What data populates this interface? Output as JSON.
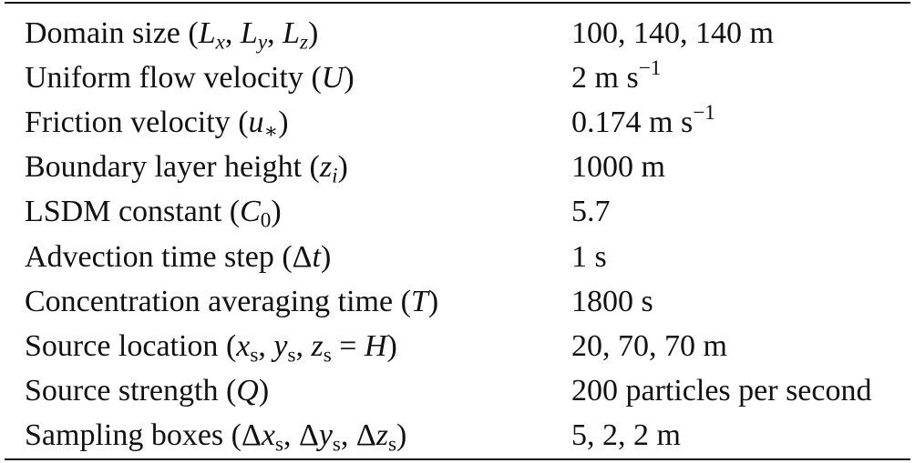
{
  "table": {
    "rows": [
      {
        "name": "Domain size",
        "symbol_html": "(<span class=\"sym\">L<sub>x</sub></span>, <span class=\"sym\">L<sub>y</sub></span>, <span class=\"sym\">L<sub>z</sub></span>)",
        "value_html": "100, 140, 140 m"
      },
      {
        "name": "Uniform flow velocity",
        "symbol_html": "(<span class=\"sym\">U</span>)",
        "value_html": "2 m s<sup>−1</sup>"
      },
      {
        "name": "Friction velocity",
        "symbol_html": "(<span class=\"sym\">u</span><sub>∗</sub>)",
        "value_html": "0.174 m s<sup>−1</sup>"
      },
      {
        "name": "Boundary layer height",
        "symbol_html": "(<span class=\"sym\">z<sub>i</sub></span>)",
        "value_html": "1000 m"
      },
      {
        "name": "LSDM constant",
        "symbol_html": "(<span class=\"sym\">C</span><sub>0</sub>)",
        "value_html": "5.7"
      },
      {
        "name": "Advection time step",
        "symbol_html": "(Δ<span class=\"sym\">t</span>)",
        "value_html": "1 s"
      },
      {
        "name": "Concentration averaging time",
        "symbol_html": "(<span class=\"sym\">T</span>)",
        "value_html": "1800 s"
      },
      {
        "name": "Source location",
        "symbol_html": "(<span class=\"sym\">x</span><sub>s</sub>, <span class=\"sym\">y</span><sub>s</sub>, <span class=\"sym\">z</span><sub>s</sub> = <span class=\"sym\">H</span>)",
        "value_html": "20, 70, 70 m"
      },
      {
        "name": "Source strength",
        "symbol_html": "(<span class=\"sym\">Q</span>)",
        "value_html": "200 particles per second"
      },
      {
        "name": "Sampling boxes",
        "symbol_html": "(Δ<span class=\"sym\">x</span><sub>s</sub>, Δ<span class=\"sym\">y</span><sub>s</sub>, Δ<span class=\"sym\">z</span><sub>s</sub>)",
        "value_html": "5, 2, 2 m"
      }
    ]
  }
}
